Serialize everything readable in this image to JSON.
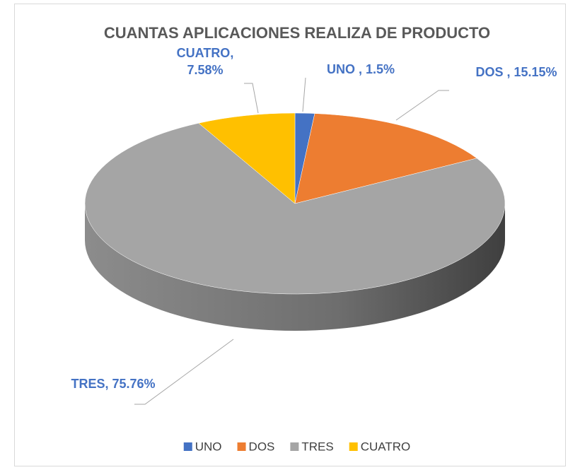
{
  "chart_data": {
    "type": "pie",
    "title": "CUANTAS APLICACIONES REALIZA DE PRODUCTO",
    "categories": [
      "UNO",
      "DOS",
      "TRES",
      "CUATRO"
    ],
    "values": [
      1.5,
      15.15,
      75.76,
      7.58
    ],
    "value_labels": [
      "UNO , 1.5%",
      "DOS , 15.15%",
      "TRES, 75.76%",
      "CUATRO, 7.58%"
    ],
    "colors": [
      "#4472c4",
      "#ed7d31",
      "#a5a5a5",
      "#ffc000"
    ]
  }
}
